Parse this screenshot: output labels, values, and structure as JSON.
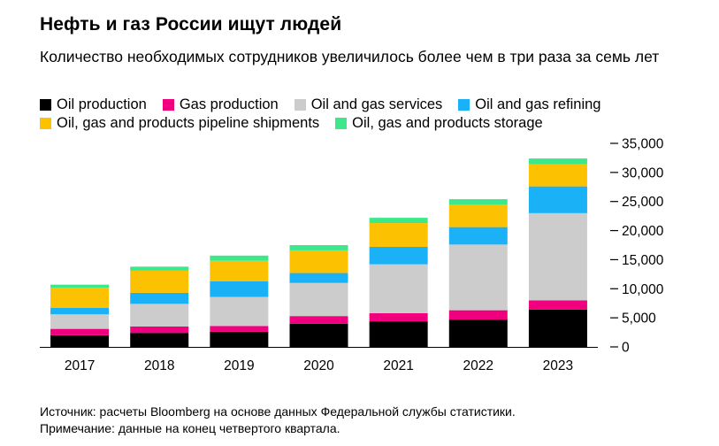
{
  "header": {
    "title": "Нефть и газ России ищут людей",
    "subtitle": "Количество необходимых сотрудников увеличилось более чем в три раза за семь лет"
  },
  "footer": {
    "source": "Источник: расчеты Bloomberg на основе данных Федеральной службы статистики.",
    "note": "Примечание: данные на конец четвертого квартала."
  },
  "chart_data": {
    "type": "bar",
    "stacked": true,
    "categories": [
      "2017",
      "2018",
      "2019",
      "2020",
      "2021",
      "2022",
      "2023"
    ],
    "series": [
      {
        "name": "Oil production",
        "color": "#000000",
        "values": [
          2000,
          2400,
          2600,
          4000,
          4400,
          4700,
          6400
        ]
      },
      {
        "name": "Gas production",
        "color": "#f0007f",
        "values": [
          1100,
          1100,
          1000,
          1300,
          1400,
          1600,
          1600
        ]
      },
      {
        "name": "Oil and gas services",
        "color": "#cccccc",
        "values": [
          2500,
          3900,
          5000,
          5700,
          8400,
          11300,
          15000
        ]
      },
      {
        "name": "Oil and gas refining",
        "color": "#1ab1f6",
        "values": [
          1100,
          1900,
          2700,
          1700,
          3000,
          3000,
          4600
        ]
      },
      {
        "name": "Oil, gas and products pipeline shipments",
        "color": "#fcc101",
        "values": [
          3500,
          3800,
          3500,
          3900,
          4100,
          3900,
          3800
        ]
      },
      {
        "name": "Oil, gas and products storage",
        "color": "#3ce88a",
        "values": [
          500,
          700,
          900,
          900,
          900,
          900,
          1000
        ]
      }
    ],
    "yticks": [
      "0",
      "5,000",
      "10,000",
      "15,000",
      "20,000",
      "25,000",
      "30,000",
      "35,000"
    ],
    "ylim": [
      0,
      35000
    ],
    "legend_position": "top",
    "grid": false,
    "y_axis_side": "right"
  }
}
